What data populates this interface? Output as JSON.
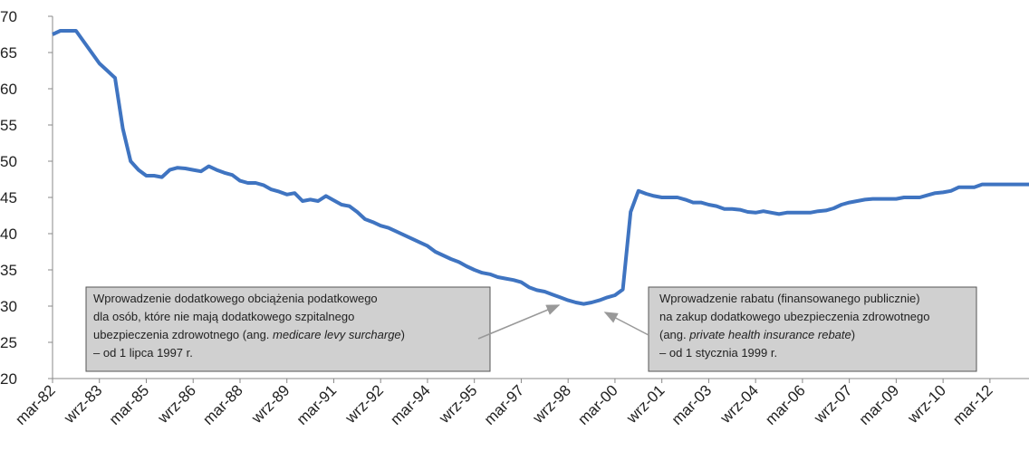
{
  "chart_data": {
    "type": "line",
    "categories": [
      "mar-82",
      null,
      null,
      null,
      null,
      null,
      "wrz-83",
      null,
      null,
      null,
      null,
      null,
      "mar-85",
      null,
      null,
      null,
      null,
      null,
      "wrz-86",
      null,
      null,
      null,
      null,
      null,
      "mar-88",
      null,
      null,
      null,
      null,
      null,
      "wrz-89",
      null,
      null,
      null,
      null,
      null,
      "mar-91",
      null,
      null,
      null,
      null,
      null,
      "wrz-92",
      null,
      null,
      null,
      null,
      null,
      "mar-94",
      null,
      null,
      null,
      null,
      null,
      "wrz-95",
      null,
      null,
      null,
      null,
      null,
      "mar-97",
      null,
      null,
      null,
      null,
      null,
      "wrz-98",
      null,
      null,
      null,
      null,
      null,
      "mar-00",
      null,
      null,
      null,
      null,
      null,
      "wrz-01",
      null,
      null,
      null,
      null,
      null,
      "mar-03",
      null,
      null,
      null,
      null,
      null,
      "wrz-04",
      null,
      null,
      null,
      null,
      null,
      "mar-06",
      null,
      null,
      null,
      null,
      null,
      "wrz-07",
      null,
      null,
      null,
      null,
      null,
      "mar-09",
      null,
      null,
      null,
      null,
      null,
      "wrz-10",
      null,
      null,
      null,
      null,
      null,
      "mar-12",
      null,
      null,
      null,
      null,
      null
    ],
    "series": [
      {
        "color": "#3f74c1",
        "values": [
          67.5,
          68,
          68,
          68,
          66.5,
          65,
          63.5,
          62.5,
          61.5,
          54.5,
          50,
          48.8,
          48,
          48,
          47.8,
          48.8,
          49.1,
          49,
          48.8,
          48.6,
          49.3,
          48.8,
          48.4,
          48.1,
          47.3,
          47,
          47,
          46.7,
          46.1,
          45.8,
          45.4,
          45.6,
          44.5,
          44.7,
          44.5,
          45.2,
          44.6,
          44,
          43.8,
          43,
          42,
          41.6,
          41.1,
          40.8,
          40.3,
          39.8,
          39.3,
          38.8,
          38.3,
          37.5,
          37,
          36.5,
          36.1,
          35.5,
          35,
          34.6,
          34.4,
          34,
          33.8,
          33.6,
          33.3,
          32.6,
          32.2,
          32,
          31.6,
          31.2,
          30.8,
          30.5,
          30.3,
          30.5,
          30.8,
          31.2,
          31.5,
          32.3,
          43,
          45.9,
          45.5,
          45.2,
          45,
          45,
          45,
          44.7,
          44.3,
          44.3,
          44,
          43.8,
          43.4,
          43.4,
          43.3,
          43,
          42.9,
          43.1,
          42.9,
          42.7,
          42.9,
          42.9,
          42.9,
          42.9,
          43.1,
          43.2,
          43.5,
          44,
          44.3,
          44.5,
          44.7,
          44.8,
          44.8,
          44.8,
          44.8,
          45,
          45,
          45,
          45.3,
          45.6,
          45.7,
          45.9,
          46.4,
          46.4,
          46.4,
          46.8,
          46.8,
          46.8,
          46.8,
          46.8,
          46.8,
          46.8
        ]
      }
    ],
    "ylim": [
      20,
      70
    ],
    "yticks": [
      20,
      25,
      30,
      35,
      40,
      45,
      50,
      55,
      60,
      65,
      70
    ],
    "annotations": [
      {
        "lines": [
          [
            "Wprowadzenie dodatkowego obciążenia podatkowego"
          ],
          [
            "dla osób, które nie mają dodatkowego szpitalnego"
          ],
          [
            "ubezpieczenia zdrowotnego (ang. ",
            "medicare levy surcharge",
            ")"
          ],
          [
            "– od 1 lipca 1997 r."
          ]
        ]
      },
      {
        "lines": [
          [
            "Wprowadzenie rabatu (finansowanego publicznie)"
          ],
          [
            "na zakup dodatkowego ubezpieczenia zdrowotnego"
          ],
          [
            "(ang. ",
            "private health insurance rebate",
            ")"
          ],
          [
            "– od 1 stycznia 1999 r."
          ]
        ]
      }
    ]
  }
}
